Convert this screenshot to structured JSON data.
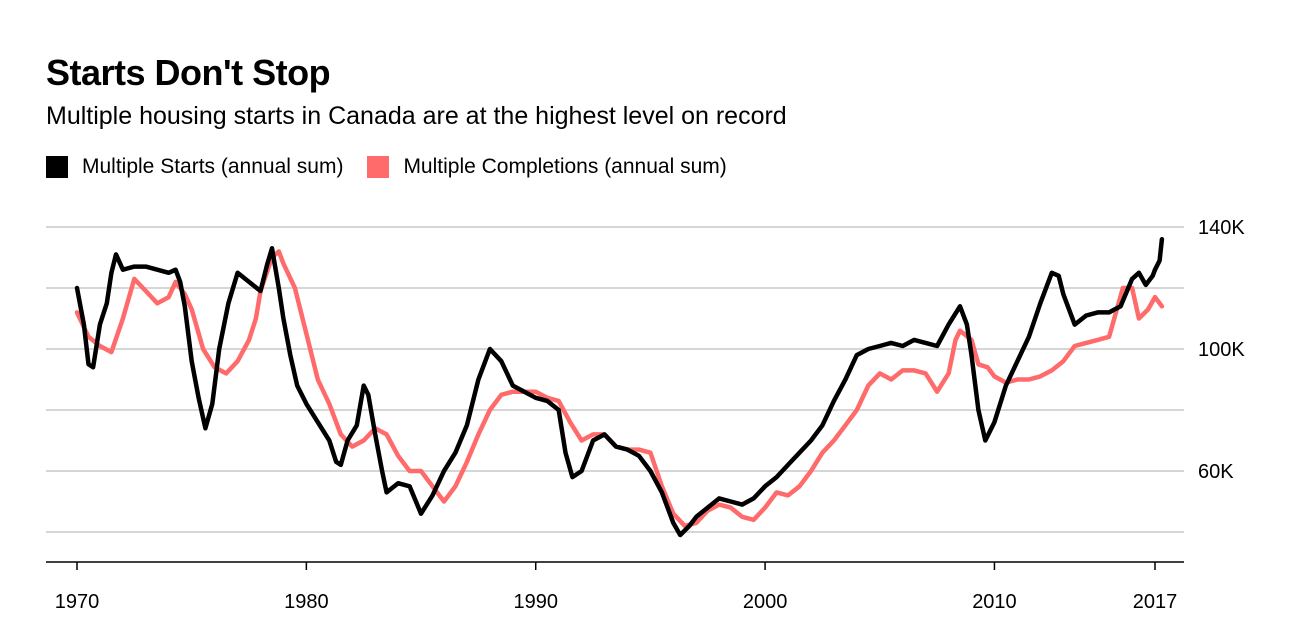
{
  "header": {
    "title": "Starts Don't Stop",
    "subtitle": "Multiple housing starts in Canada are at the highest level on record"
  },
  "legend": [
    {
      "label": "Multiple Starts (annual sum)",
      "color": "#000000"
    },
    {
      "label": "Multiple Completions (annual sum)",
      "color": "#ff6b6b"
    }
  ],
  "chart_data": {
    "type": "line",
    "title": "Starts Don't Stop",
    "subtitle": "Multiple housing starts in Canada are at the highest level on record",
    "xlim": [
      1970,
      2017
    ],
    "ylim": [
      30000,
      140000
    ],
    "x_ticks": [
      1970,
      1980,
      1990,
      2000,
      2010,
      2017
    ],
    "x_tick_labels": [
      "1970",
      "1980",
      "1990",
      "2000",
      "2010",
      "2017"
    ],
    "y_ticks": [
      40000,
      60000,
      80000,
      100000,
      120000,
      140000
    ],
    "y_tick_labels": [
      "",
      "60K",
      "",
      "100K",
      "",
      "140K"
    ],
    "grid": true,
    "legend_position": "top-left",
    "series": [
      {
        "name": "Multiple Starts (annual sum)",
        "color": "#000000",
        "points": [
          [
            1970.0,
            120000
          ],
          [
            1970.3,
            108000
          ],
          [
            1970.5,
            95000
          ],
          [
            1970.7,
            94000
          ],
          [
            1971.0,
            108000
          ],
          [
            1971.3,
            115000
          ],
          [
            1971.5,
            125000
          ],
          [
            1971.7,
            131000
          ],
          [
            1972.0,
            126000
          ],
          [
            1972.5,
            127000
          ],
          [
            1973.0,
            127000
          ],
          [
            1973.5,
            126000
          ],
          [
            1974.0,
            125000
          ],
          [
            1974.3,
            126000
          ],
          [
            1974.5,
            122000
          ],
          [
            1974.7,
            114000
          ],
          [
            1975.0,
            96000
          ],
          [
            1975.3,
            84000
          ],
          [
            1975.6,
            74000
          ],
          [
            1975.9,
            82000
          ],
          [
            1976.2,
            100000
          ],
          [
            1976.6,
            115000
          ],
          [
            1977.0,
            125000
          ],
          [
            1977.5,
            122000
          ],
          [
            1978.0,
            119000
          ],
          [
            1978.3,
            128000
          ],
          [
            1978.5,
            133000
          ],
          [
            1978.8,
            120000
          ],
          [
            1979.0,
            110000
          ],
          [
            1979.3,
            98000
          ],
          [
            1979.6,
            88000
          ],
          [
            1980.0,
            82000
          ],
          [
            1980.5,
            76000
          ],
          [
            1981.0,
            70000
          ],
          [
            1981.3,
            63000
          ],
          [
            1981.5,
            62000
          ],
          [
            1981.8,
            70000
          ],
          [
            1982.2,
            75000
          ],
          [
            1982.5,
            88000
          ],
          [
            1982.7,
            85000
          ],
          [
            1983.0,
            72000
          ],
          [
            1983.3,
            60000
          ],
          [
            1983.5,
            53000
          ],
          [
            1984.0,
            56000
          ],
          [
            1984.5,
            55000
          ],
          [
            1985.0,
            46000
          ],
          [
            1985.5,
            52000
          ],
          [
            1986.0,
            60000
          ],
          [
            1986.5,
            66000
          ],
          [
            1987.0,
            75000
          ],
          [
            1987.5,
            90000
          ],
          [
            1988.0,
            100000
          ],
          [
            1988.5,
            96000
          ],
          [
            1989.0,
            88000
          ],
          [
            1989.5,
            86000
          ],
          [
            1990.0,
            84000
          ],
          [
            1990.5,
            83000
          ],
          [
            1991.0,
            80000
          ],
          [
            1991.3,
            66000
          ],
          [
            1991.6,
            58000
          ],
          [
            1992.0,
            60000
          ],
          [
            1992.5,
            70000
          ],
          [
            1993.0,
            72000
          ],
          [
            1993.5,
            68000
          ],
          [
            1994.0,
            67000
          ],
          [
            1994.5,
            65000
          ],
          [
            1995.0,
            60000
          ],
          [
            1995.5,
            53000
          ],
          [
            1996.0,
            43000
          ],
          [
            1996.3,
            39000
          ],
          [
            1996.7,
            42000
          ],
          [
            1997.0,
            45000
          ],
          [
            1997.5,
            48000
          ],
          [
            1998.0,
            51000
          ],
          [
            1998.5,
            50000
          ],
          [
            1999.0,
            49000
          ],
          [
            1999.5,
            51000
          ],
          [
            2000.0,
            55000
          ],
          [
            2000.5,
            58000
          ],
          [
            2001.0,
            62000
          ],
          [
            2001.5,
            66000
          ],
          [
            2002.0,
            70000
          ],
          [
            2002.5,
            75000
          ],
          [
            2003.0,
            83000
          ],
          [
            2003.5,
            90000
          ],
          [
            2004.0,
            98000
          ],
          [
            2004.5,
            100000
          ],
          [
            2005.0,
            101000
          ],
          [
            2005.5,
            102000
          ],
          [
            2006.0,
            101000
          ],
          [
            2006.5,
            103000
          ],
          [
            2007.0,
            102000
          ],
          [
            2007.5,
            101000
          ],
          [
            2008.0,
            108000
          ],
          [
            2008.5,
            114000
          ],
          [
            2008.8,
            108000
          ],
          [
            2009.0,
            98000
          ],
          [
            2009.3,
            80000
          ],
          [
            2009.6,
            70000
          ],
          [
            2010.0,
            76000
          ],
          [
            2010.5,
            88000
          ],
          [
            2011.0,
            96000
          ],
          [
            2011.5,
            104000
          ],
          [
            2012.0,
            115000
          ],
          [
            2012.5,
            125000
          ],
          [
            2012.8,
            124000
          ],
          [
            2013.0,
            118000
          ],
          [
            2013.5,
            108000
          ],
          [
            2014.0,
            111000
          ],
          [
            2014.5,
            112000
          ],
          [
            2015.0,
            112000
          ],
          [
            2015.5,
            114000
          ],
          [
            2016.0,
            123000
          ],
          [
            2016.3,
            125000
          ],
          [
            2016.6,
            121000
          ],
          [
            2016.9,
            124000
          ],
          [
            2017.0,
            126000
          ],
          [
            2017.2,
            129000
          ],
          [
            2017.3,
            136000
          ]
        ]
      },
      {
        "name": "Multiple Completions (annual sum)",
        "color": "#ff6b6b",
        "points": [
          [
            1970.0,
            112000
          ],
          [
            1970.5,
            104000
          ],
          [
            1971.0,
            101000
          ],
          [
            1971.5,
            99000
          ],
          [
            1972.0,
            110000
          ],
          [
            1972.5,
            123000
          ],
          [
            1973.0,
            119000
          ],
          [
            1973.5,
            115000
          ],
          [
            1974.0,
            117000
          ],
          [
            1974.3,
            122000
          ],
          [
            1974.7,
            118000
          ],
          [
            1975.0,
            113000
          ],
          [
            1975.5,
            100000
          ],
          [
            1976.0,
            94000
          ],
          [
            1976.5,
            92000
          ],
          [
            1977.0,
            96000
          ],
          [
            1977.5,
            103000
          ],
          [
            1977.8,
            110000
          ],
          [
            1978.0,
            119000
          ],
          [
            1978.5,
            130000
          ],
          [
            1978.8,
            132000
          ],
          [
            1979.0,
            128000
          ],
          [
            1979.5,
            120000
          ],
          [
            1980.0,
            105000
          ],
          [
            1980.5,
            90000
          ],
          [
            1981.0,
            82000
          ],
          [
            1981.5,
            72000
          ],
          [
            1982.0,
            68000
          ],
          [
            1982.5,
            70000
          ],
          [
            1983.0,
            74000
          ],
          [
            1983.5,
            72000
          ],
          [
            1984.0,
            65000
          ],
          [
            1984.5,
            60000
          ],
          [
            1985.0,
            60000
          ],
          [
            1985.5,
            55000
          ],
          [
            1986.0,
            50000
          ],
          [
            1986.5,
            55000
          ],
          [
            1987.0,
            63000
          ],
          [
            1987.5,
            72000
          ],
          [
            1988.0,
            80000
          ],
          [
            1988.5,
            85000
          ],
          [
            1989.0,
            86000
          ],
          [
            1989.5,
            86000
          ],
          [
            1990.0,
            86000
          ],
          [
            1990.5,
            84000
          ],
          [
            1991.0,
            83000
          ],
          [
            1991.5,
            76000
          ],
          [
            1992.0,
            70000
          ],
          [
            1992.5,
            72000
          ],
          [
            1993.0,
            72000
          ],
          [
            1993.5,
            68000
          ],
          [
            1994.0,
            67000
          ],
          [
            1994.5,
            67000
          ],
          [
            1995.0,
            66000
          ],
          [
            1995.5,
            55000
          ],
          [
            1996.0,
            46000
          ],
          [
            1996.5,
            42000
          ],
          [
            1997.0,
            43000
          ],
          [
            1997.5,
            47000
          ],
          [
            1998.0,
            49000
          ],
          [
            1998.5,
            48000
          ],
          [
            1999.0,
            45000
          ],
          [
            1999.5,
            44000
          ],
          [
            2000.0,
            48000
          ],
          [
            2000.5,
            53000
          ],
          [
            2001.0,
            52000
          ],
          [
            2001.5,
            55000
          ],
          [
            2002.0,
            60000
          ],
          [
            2002.5,
            66000
          ],
          [
            2003.0,
            70000
          ],
          [
            2003.5,
            75000
          ],
          [
            2004.0,
            80000
          ],
          [
            2004.5,
            88000
          ],
          [
            2005.0,
            92000
          ],
          [
            2005.5,
            90000
          ],
          [
            2006.0,
            93000
          ],
          [
            2006.5,
            93000
          ],
          [
            2007.0,
            92000
          ],
          [
            2007.5,
            86000
          ],
          [
            2008.0,
            92000
          ],
          [
            2008.3,
            103000
          ],
          [
            2008.5,
            106000
          ],
          [
            2009.0,
            103000
          ],
          [
            2009.3,
            95000
          ],
          [
            2009.7,
            94000
          ],
          [
            2010.0,
            91000
          ],
          [
            2010.5,
            89000
          ],
          [
            2011.0,
            90000
          ],
          [
            2011.5,
            90000
          ],
          [
            2012.0,
            91000
          ],
          [
            2012.5,
            93000
          ],
          [
            2013.0,
            96000
          ],
          [
            2013.5,
            101000
          ],
          [
            2014.0,
            102000
          ],
          [
            2014.5,
            103000
          ],
          [
            2015.0,
            104000
          ],
          [
            2015.3,
            112000
          ],
          [
            2015.6,
            120000
          ],
          [
            2016.0,
            120000
          ],
          [
            2016.3,
            110000
          ],
          [
            2016.7,
            113000
          ],
          [
            2017.0,
            117000
          ],
          [
            2017.3,
            114000
          ]
        ]
      }
    ]
  }
}
